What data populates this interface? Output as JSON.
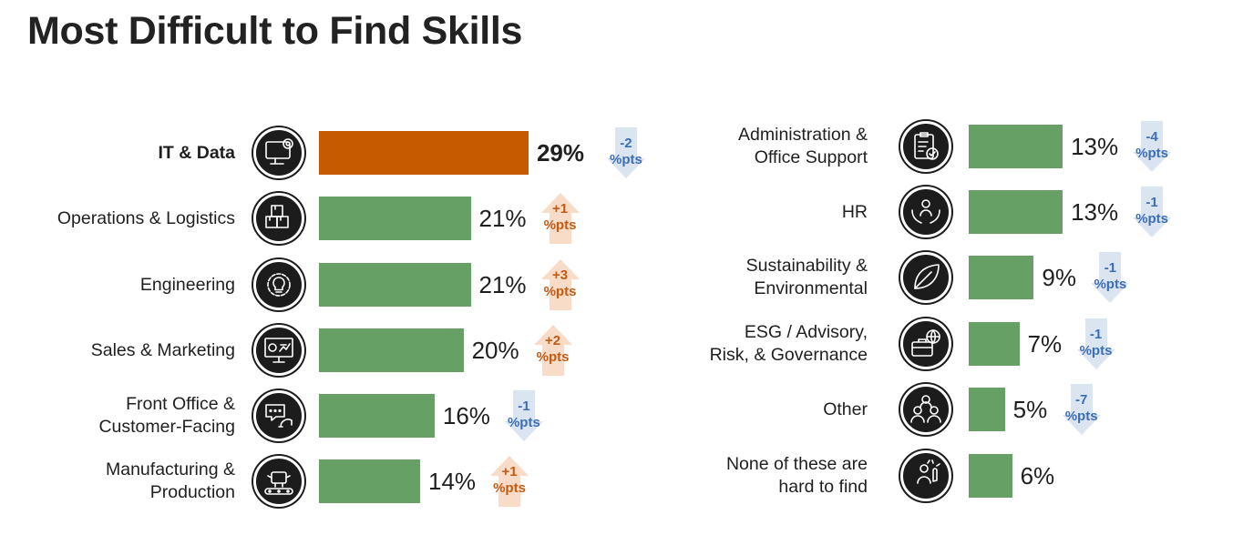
{
  "title": "Most Difficult to Find Skills",
  "colors": {
    "highlight": "#c55a00",
    "bar": "#67a064",
    "up": "#c55a11",
    "up_arrow": "#f8dcc8",
    "down": "#3a6fb5",
    "down_arrow": "#dbe4f1",
    "icon": "#1c1c1c"
  },
  "chart_data": {
    "type": "bar",
    "orientation": "horizontal",
    "title": "Most Difficult to Find Skills",
    "columns": [
      {
        "categories": [
          "IT & Data",
          "Operations & Logistics",
          "Engineering",
          "Sales & Marketing",
          "Front Office & Customer-Facing",
          "Manufacturing & Production"
        ],
        "values": [
          29,
          21,
          21,
          20,
          16,
          14
        ],
        "value_labels": [
          "29%",
          "21%",
          "21%",
          "20%",
          "16%",
          "14%"
        ],
        "change_labels": [
          [
            "-2",
            "%pts"
          ],
          [
            "+1",
            "%pts"
          ],
          [
            "+3",
            "%pts"
          ],
          [
            "+2",
            "%pts"
          ],
          [
            "-1",
            "%pts"
          ],
          [
            "+1",
            "%pts"
          ]
        ],
        "changes": [
          -2,
          1,
          3,
          2,
          -1,
          1
        ],
        "icons": [
          "monitor-gear-icon",
          "boxes-icon",
          "gear-bulb-icon",
          "presentation-chart-icon",
          "headset-chat-icon",
          "conveyor-robot-icon"
        ]
      },
      {
        "categories": [
          "Administration & Office Support",
          "HR",
          "Sustainability & Environmental",
          "ESG / Advisory, Risk, & Governance",
          "Other",
          "None of these are hard to find"
        ],
        "values": [
          13,
          13,
          9,
          7,
          5,
          6
        ],
        "value_labels": [
          "13%",
          "13%",
          "9%",
          "7%",
          "5%",
          "6%"
        ],
        "change_labels": [
          [
            "-4",
            "%pts"
          ],
          [
            "-1",
            "%pts"
          ],
          [
            "-1",
            "%pts"
          ],
          [
            "-1",
            "%pts"
          ],
          [
            "-7",
            "%pts"
          ],
          null
        ],
        "changes": [
          -4,
          -1,
          -1,
          -1,
          -7,
          null
        ],
        "icons": [
          "clipboard-check-icon",
          "hands-person-icon",
          "leaf-icon",
          "briefcase-globe-icon",
          "group-people-icon",
          "person-touch-icon"
        ]
      }
    ],
    "label_lines": [
      [
        [
          "IT & Data"
        ],
        [
          "Operations & Logistics"
        ],
        [
          "Engineering"
        ],
        [
          "Sales & Marketing"
        ],
        [
          "Front Office &",
          "Customer-Facing"
        ],
        [
          "Manufacturing &",
          "Production"
        ]
      ],
      [
        [
          "Administration &",
          "Office Support"
        ],
        [
          "HR"
        ],
        [
          "Sustainability &",
          "Environmental"
        ],
        [
          "ESG / Advisory,",
          "Risk, & Governance"
        ],
        [
          "Other"
        ],
        [
          "None of these are",
          "hard to find"
        ]
      ]
    ],
    "highlight_index": [
      0,
      null
    ],
    "xlim": [
      0,
      29
    ]
  }
}
